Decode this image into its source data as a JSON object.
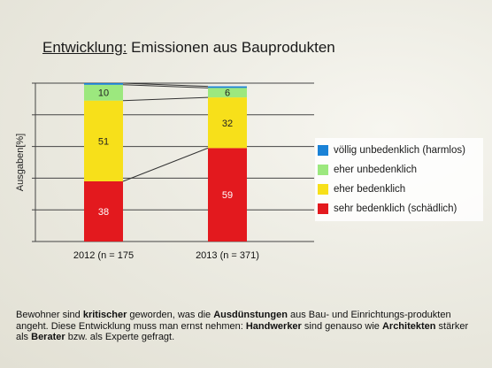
{
  "title": {
    "underlined": "Entwicklung:",
    "rest": " Emissionen aus Bauprodukten"
  },
  "chart_data": {
    "type": "bar",
    "stacked": true,
    "ylabel": "Ausgaben[%]",
    "ylim": [
      0,
      100
    ],
    "categories": [
      "2012 (n = 175",
      "2013 (n = 371)"
    ],
    "series": [
      {
        "name": "sehr bedenklich (schädlich)",
        "color": "#e3191e",
        "values": [
          38,
          59
        ]
      },
      {
        "name": "eher bedenklich",
        "color": "#f7e01a",
        "values": [
          51,
          32
        ]
      },
      {
        "name": "eher unbedenklich",
        "color": "#9ce87e",
        "values": [
          10,
          6
        ]
      },
      {
        "name": "völlig unbedenklich (harmlos)",
        "color": "#1a82d6",
        "values": [
          1,
          1
        ]
      }
    ],
    "data_labels": [
      [
        "38",
        "51",
        "10",
        ""
      ],
      [
        "59",
        "32",
        "6",
        ""
      ]
    ],
    "legend_position": "right",
    "legend_order": [
      3,
      2,
      1,
      0
    ]
  },
  "caption": [
    {
      "t": "Bewohner sind ",
      "b": false
    },
    {
      "t": "kritischer",
      "b": true
    },
    {
      "t": " geworden, was die ",
      "b": false
    },
    {
      "t": "Ausdünstungen",
      "b": true
    },
    {
      "t": " aus Bau- und Einrichtungs-produkten angeht. Diese Entwicklung muss man ernst nehmen: ",
      "b": false
    },
    {
      "t": "Handwerker",
      "b": true
    },
    {
      "t": " sind genauso wie ",
      "b": false
    },
    {
      "t": "Architekten",
      "b": true
    },
    {
      "t": " stärker als ",
      "b": false
    },
    {
      "t": "Berater",
      "b": true
    },
    {
      "t": " bzw. als Experte gefragt.",
      "b": false
    }
  ]
}
